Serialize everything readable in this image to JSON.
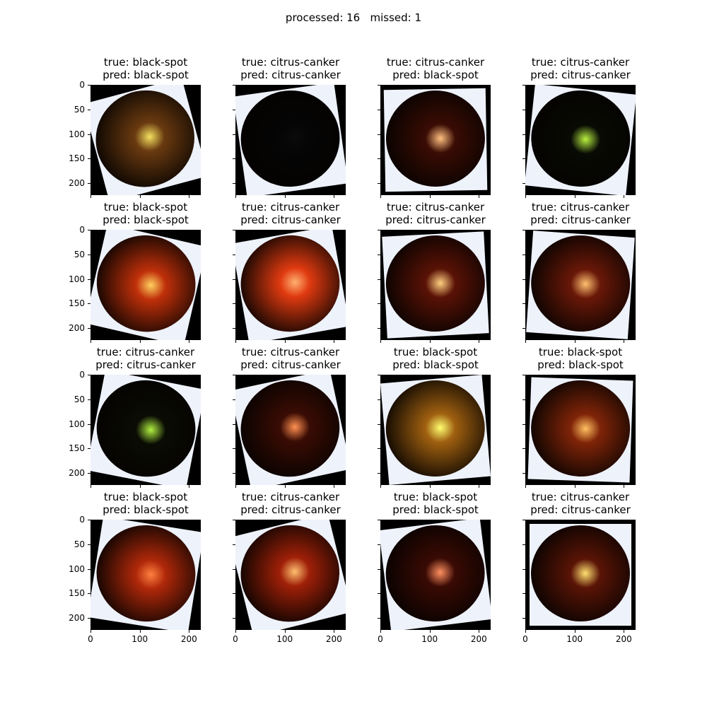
{
  "suptitle": "processed: 16   missed: 1",
  "chart_data": {
    "type": "image-grid",
    "rows": 4,
    "cols": 4,
    "image_size": [
      224,
      224
    ],
    "xlim": [
      0,
      224
    ],
    "ylim": [
      224,
      0
    ],
    "xticks": [
      0,
      100,
      200
    ],
    "yticks": [
      0,
      50,
      100,
      150,
      200
    ],
    "panels": [
      {
        "true": "true: black-spot",
        "pred": "pred: black-spot",
        "tint": "#6a3a10",
        "hi": "#f4e060"
      },
      {
        "true": "true: citrus-canker",
        "pred": "pred: citrus-canker",
        "tint": "#050505",
        "hi": "#0b0b0b"
      },
      {
        "true": "true: citrus-canker",
        "pred": "pred: black-spot",
        "tint": "#3a0c04",
        "hi": "#ffc080"
      },
      {
        "true": "true: citrus-canker",
        "pred": "pred: citrus-canker",
        "tint": "#080a04",
        "hi": "#b8f040"
      },
      {
        "true": "true: black-spot",
        "pred": "pred: black-spot",
        "tint": "#c0300a",
        "hi": "#ffd060"
      },
      {
        "true": "true: citrus-canker",
        "pred": "pred: citrus-canker",
        "tint": "#e03a10",
        "hi": "#ffb070"
      },
      {
        "true": "true: citrus-canker",
        "pred": "pred: citrus-canker",
        "tint": "#5a1206",
        "hi": "#ffd080"
      },
      {
        "true": "true: citrus-canker",
        "pred": "pred: citrus-canker",
        "tint": "#6a1808",
        "hi": "#ffc070"
      },
      {
        "true": "true: citrus-canker",
        "pred": "pred: citrus-canker",
        "tint": "#0a0c04",
        "hi": "#b0f040"
      },
      {
        "true": "true: citrus-canker",
        "pred": "pred: citrus-canker",
        "tint": "#3a0c04",
        "hi": "#ff9050"
      },
      {
        "true": "true: black-spot",
        "pred": "pred: black-spot",
        "tint": "#a06010",
        "hi": "#ffff70"
      },
      {
        "true": "true: black-spot",
        "pred": "pred: black-spot",
        "tint": "#802408",
        "hi": "#ffc060"
      },
      {
        "true": "true: black-spot",
        "pred": "pred: black-spot",
        "tint": "#b0280a",
        "hi": "#ff8040"
      },
      {
        "true": "true: citrus-canker",
        "pred": "pred: citrus-canker",
        "tint": "#a02008",
        "hi": "#ffc070"
      },
      {
        "true": "true: black-spot",
        "pred": "pred: black-spot",
        "tint": "#3a0a04",
        "hi": "#ff9060"
      },
      {
        "true": "true: citrus-canker",
        "pred": "pred: citrus-canker",
        "tint": "#5a1406",
        "hi": "#ffe070"
      }
    ]
  }
}
